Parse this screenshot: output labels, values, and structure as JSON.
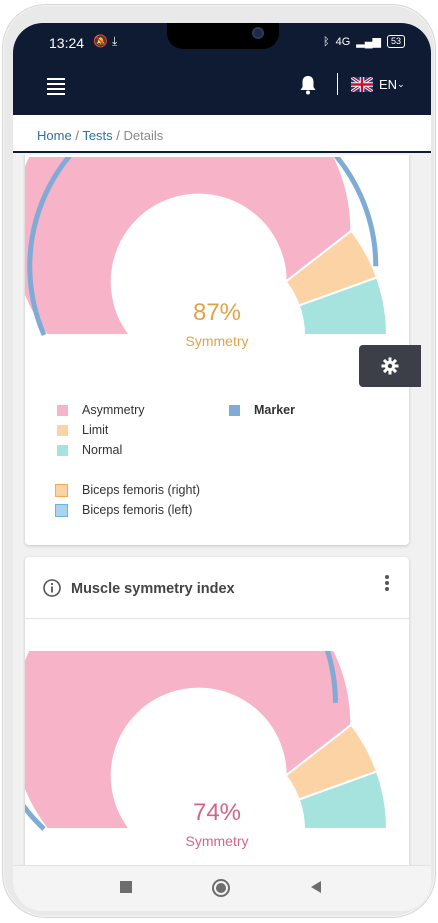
{
  "status": {
    "time": "13:24",
    "network": "4G",
    "battery": "53"
  },
  "appbar": {
    "language": "EN"
  },
  "breadcrumb": {
    "home": "Home",
    "tests": "Tests",
    "current": "Details",
    "sep": "/"
  },
  "colors": {
    "asymmetry": "#f7b3c7",
    "limit": "#fbd3a5",
    "normal": "#a6e3df",
    "marker": "#7fabd6",
    "right_box": "#f3a85a",
    "left_box": "#6fb2df",
    "percent_87": "#e0a34a",
    "percent_74": "#d2648c"
  },
  "gauge1": {
    "percent": "87%",
    "label": "Symmetry",
    "value": 0.87
  },
  "legend": {
    "asymmetry": "Asymmetry",
    "limit": "Limit",
    "normal": "Normal",
    "marker": "Marker",
    "right": "Biceps femoris (right)",
    "left": "Biceps femoris (left)"
  },
  "card2": {
    "title": "Muscle symmetry index"
  },
  "gauge2": {
    "percent": "74%",
    "label": "Symmetry",
    "value": 0.74
  },
  "icons": {
    "menu": "hamburger-icon",
    "notifications": "bell-icon",
    "language": "uk-flag-icon",
    "settings": "gear-icon",
    "info": "info-icon",
    "more": "kebab-icon"
  }
}
